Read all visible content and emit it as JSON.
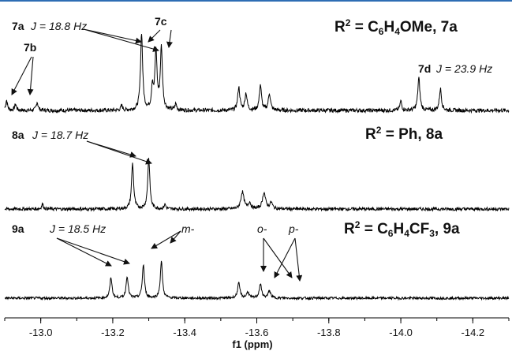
{
  "chart_data": {
    "type": "line",
    "xlabel": "f1 (ppm)",
    "xlim": [
      -12.9,
      -14.3
    ],
    "x_ticks": [
      "-13.0",
      "-13.2",
      "-13.4",
      "-13.6",
      "-13.8",
      "-14.0",
      "-14.2"
    ],
    "x_tick_values": [
      -13.0,
      -13.2,
      -13.4,
      -13.6,
      -13.8,
      -14.0,
      -14.2
    ],
    "grid": false,
    "line_color": "#000000",
    "rule_color": "#2e6db4",
    "series": [
      {
        "name": "R2 = C6H4OMe, 7a",
        "baseline_noise": 0.025,
        "peaks": [
          {
            "ppm": -12.905,
            "height": 0.13,
            "width": 0.003
          },
          {
            "ppm": -12.93,
            "height": 0.08,
            "width": 0.003
          },
          {
            "ppm": -12.99,
            "height": 0.11,
            "width": 0.003
          },
          {
            "ppm": -13.225,
            "height": 0.06,
            "width": 0.003
          },
          {
            "ppm": -13.28,
            "height": 1.0,
            "width": 0.0035
          },
          {
            "ppm": -13.31,
            "height": 0.3,
            "width": 0.003
          },
          {
            "ppm": -13.32,
            "height": 0.75,
            "width": 0.0035
          },
          {
            "ppm": -13.335,
            "height": 0.8,
            "width": 0.0035
          },
          {
            "ppm": -13.375,
            "height": 0.08,
            "width": 0.003
          },
          {
            "ppm": -13.55,
            "height": 0.3,
            "width": 0.0035
          },
          {
            "ppm": -13.57,
            "height": 0.22,
            "width": 0.0035
          },
          {
            "ppm": -13.61,
            "height": 0.33,
            "width": 0.0035
          },
          {
            "ppm": -13.635,
            "height": 0.22,
            "width": 0.0035
          },
          {
            "ppm": -14.0,
            "height": 0.12,
            "width": 0.003
          },
          {
            "ppm": -14.05,
            "height": 0.42,
            "width": 0.0035
          },
          {
            "ppm": -14.11,
            "height": 0.28,
            "width": 0.0035
          }
        ]
      },
      {
        "name": "R2 = Ph, 8a",
        "baseline_noise": 0.025,
        "peaks": [
          {
            "ppm": -13.005,
            "height": 0.08,
            "width": 0.003
          },
          {
            "ppm": -13.255,
            "height": 0.72,
            "width": 0.0035
          },
          {
            "ppm": -13.3,
            "height": 0.8,
            "width": 0.0035
          },
          {
            "ppm": -13.345,
            "height": 0.07,
            "width": 0.003
          },
          {
            "ppm": -13.56,
            "height": 0.27,
            "width": 0.005
          },
          {
            "ppm": -13.58,
            "height": 0.1,
            "width": 0.004
          },
          {
            "ppm": -13.62,
            "height": 0.26,
            "width": 0.005
          },
          {
            "ppm": -13.64,
            "height": 0.1,
            "width": 0.004
          }
        ]
      },
      {
        "name": "R2 = C6H4CF3, 9a",
        "baseline_noise": 0.025,
        "peaks": [
          {
            "ppm": -13.195,
            "height": 0.42,
            "width": 0.0035
          },
          {
            "ppm": -13.24,
            "height": 0.45,
            "width": 0.0035
          },
          {
            "ppm": -13.285,
            "height": 0.68,
            "width": 0.0035
          },
          {
            "ppm": -13.335,
            "height": 0.75,
            "width": 0.0035
          },
          {
            "ppm": -13.55,
            "height": 0.3,
            "width": 0.004
          },
          {
            "ppm": -13.575,
            "height": 0.12,
            "width": 0.004
          },
          {
            "ppm": -13.61,
            "height": 0.28,
            "width": 0.004
          },
          {
            "ppm": -13.635,
            "height": 0.15,
            "width": 0.004
          }
        ]
      }
    ]
  },
  "labels": {
    "t1_7a": "7a",
    "t1_j7a": "J = 18.8 Hz",
    "t1_7c": "7c",
    "t1_7b": "7b",
    "t1_7d": "7d",
    "t1_j7d": "J = 23.9 Hz",
    "t1_r_r": "R",
    "t1_r_sup": "2",
    "t1_r_eq": " = C",
    "t1_r_sub1": "6",
    "t1_r_h": "H",
    "t1_r_sub2": "4",
    "t1_r_end": "OMe, 7a",
    "t2_8a": "8a",
    "t2_j8a": "J = 18.7 Hz",
    "t2_r_r": "R",
    "t2_r_sup": "2",
    "t2_r_end": " = Ph, 8a",
    "t3_9a": "9a",
    "t3_j9a": "J = 18.5 Hz",
    "t3_m": "m-",
    "t3_o": "o-",
    "t3_p": "p-",
    "t3_r_r": "R",
    "t3_r_sup": "2",
    "t3_r_eq": " = C",
    "t3_r_sub1": "6",
    "t3_r_h": "H",
    "t3_r_sub2": "4",
    "t3_r_end": "CF",
    "t3_r_sub3": "3",
    "t3_r_tail": ", 9a"
  }
}
